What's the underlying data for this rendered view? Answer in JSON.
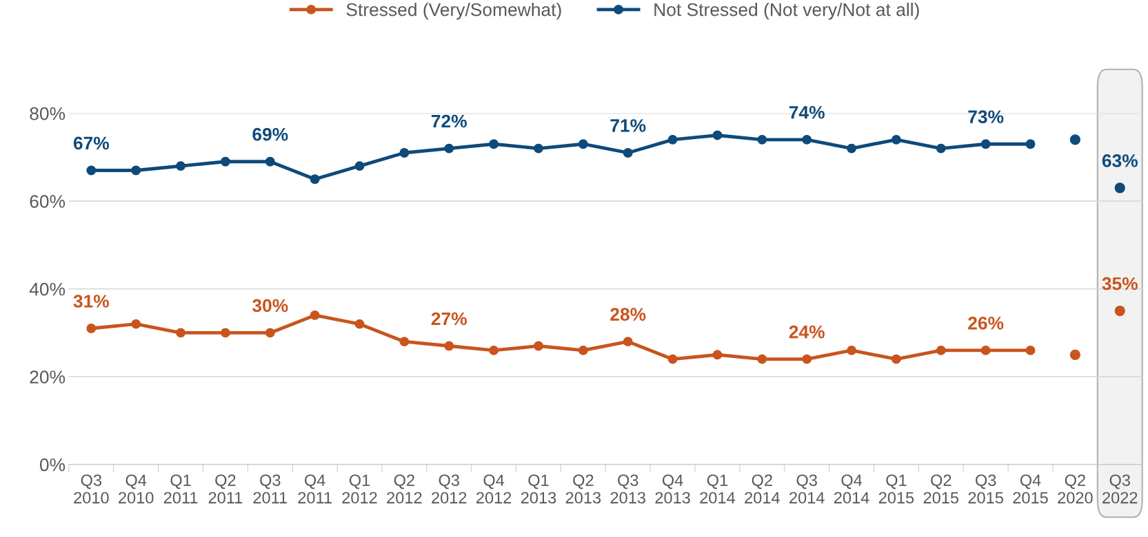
{
  "chart_data": {
    "type": "line",
    "categories": [
      "Q3\n2010",
      "Q4\n2010",
      "Q1\n2011",
      "Q2\n2011",
      "Q3\n2011",
      "Q4\n2011",
      "Q1\n2012",
      "Q2\n2012",
      "Q3\n2012",
      "Q4\n2012",
      "Q1\n2013",
      "Q2\n2013",
      "Q3\n2013",
      "Q4\n2013",
      "Q1\n2014",
      "Q2\n2014",
      "Q3\n2014",
      "Q4\n2014",
      "Q1\n2015",
      "Q2\n2015",
      "Q3\n2015",
      "Q4\n2015",
      "Q2\n2020",
      "Q3\n2022"
    ],
    "series": [
      {
        "name": "Stressed (Very/Somewhat)",
        "color": "#c9541e",
        "values": [
          31,
          32,
          30,
          30,
          30,
          34,
          32,
          28,
          27,
          26,
          27,
          26,
          28,
          24,
          25,
          24,
          24,
          26,
          24,
          26,
          26,
          26,
          null,
          null
        ],
        "value_labels": [
          "31%",
          null,
          null,
          null,
          "30%",
          null,
          null,
          null,
          "27%",
          null,
          null,
          null,
          "28%",
          null,
          null,
          null,
          "24%",
          null,
          null,
          null,
          "26%",
          null,
          null,
          null
        ]
      },
      {
        "name": "Not Stressed (Not very/Not at all)",
        "color": "#0e4a7b",
        "values": [
          67,
          67,
          68,
          69,
          69,
          65,
          68,
          71,
          72,
          73,
          72,
          73,
          71,
          74,
          75,
          74,
          74,
          72,
          74,
          72,
          73,
          73,
          null,
          null
        ],
        "value_labels": [
          "67%",
          null,
          null,
          null,
          "69%",
          null,
          null,
          null,
          "72%",
          null,
          null,
          null,
          "71%",
          null,
          null,
          null,
          "74%",
          null,
          null,
          null,
          "73%",
          null,
          null,
          null
        ]
      },
      {
        "type": "scatter",
        "color": "#c9541e",
        "values": [
          null,
          null,
          null,
          null,
          null,
          null,
          null,
          null,
          null,
          null,
          null,
          null,
          null,
          null,
          null,
          null,
          null,
          null,
          null,
          null,
          null,
          null,
          25,
          35
        ],
        "value_labels": [
          null,
          null,
          null,
          null,
          null,
          null,
          null,
          null,
          null,
          null,
          null,
          null,
          null,
          null,
          null,
          null,
          null,
          null,
          null,
          null,
          null,
          null,
          null,
          "35%"
        ]
      },
      {
        "type": "scatter",
        "color": "#0e4a7b",
        "values": [
          null,
          null,
          null,
          null,
          null,
          null,
          null,
          null,
          null,
          null,
          null,
          null,
          null,
          null,
          null,
          null,
          null,
          null,
          null,
          null,
          null,
          null,
          74,
          63
        ],
        "value_labels": [
          null,
          null,
          null,
          null,
          null,
          null,
          null,
          null,
          null,
          null,
          null,
          null,
          null,
          null,
          null,
          null,
          null,
          null,
          null,
          null,
          null,
          null,
          null,
          "63%"
        ]
      }
    ],
    "ylim": [
      0,
      80
    ],
    "yticks": [
      {
        "value": 0,
        "label": "0%"
      },
      {
        "value": 20,
        "label": "20%"
      },
      {
        "value": 40,
        "label": "40%"
      },
      {
        "value": 60,
        "label": "60%"
      },
      {
        "value": 80,
        "label": "80%"
      }
    ],
    "bands": [
      {
        "axis": "x",
        "from": "Q3\n2022",
        "to": "Q3\n2022",
        "color": "#f2f2f2"
      }
    ],
    "grid": "y",
    "legend": "top",
    "marker": "circle",
    "line_style": "solid"
  }
}
